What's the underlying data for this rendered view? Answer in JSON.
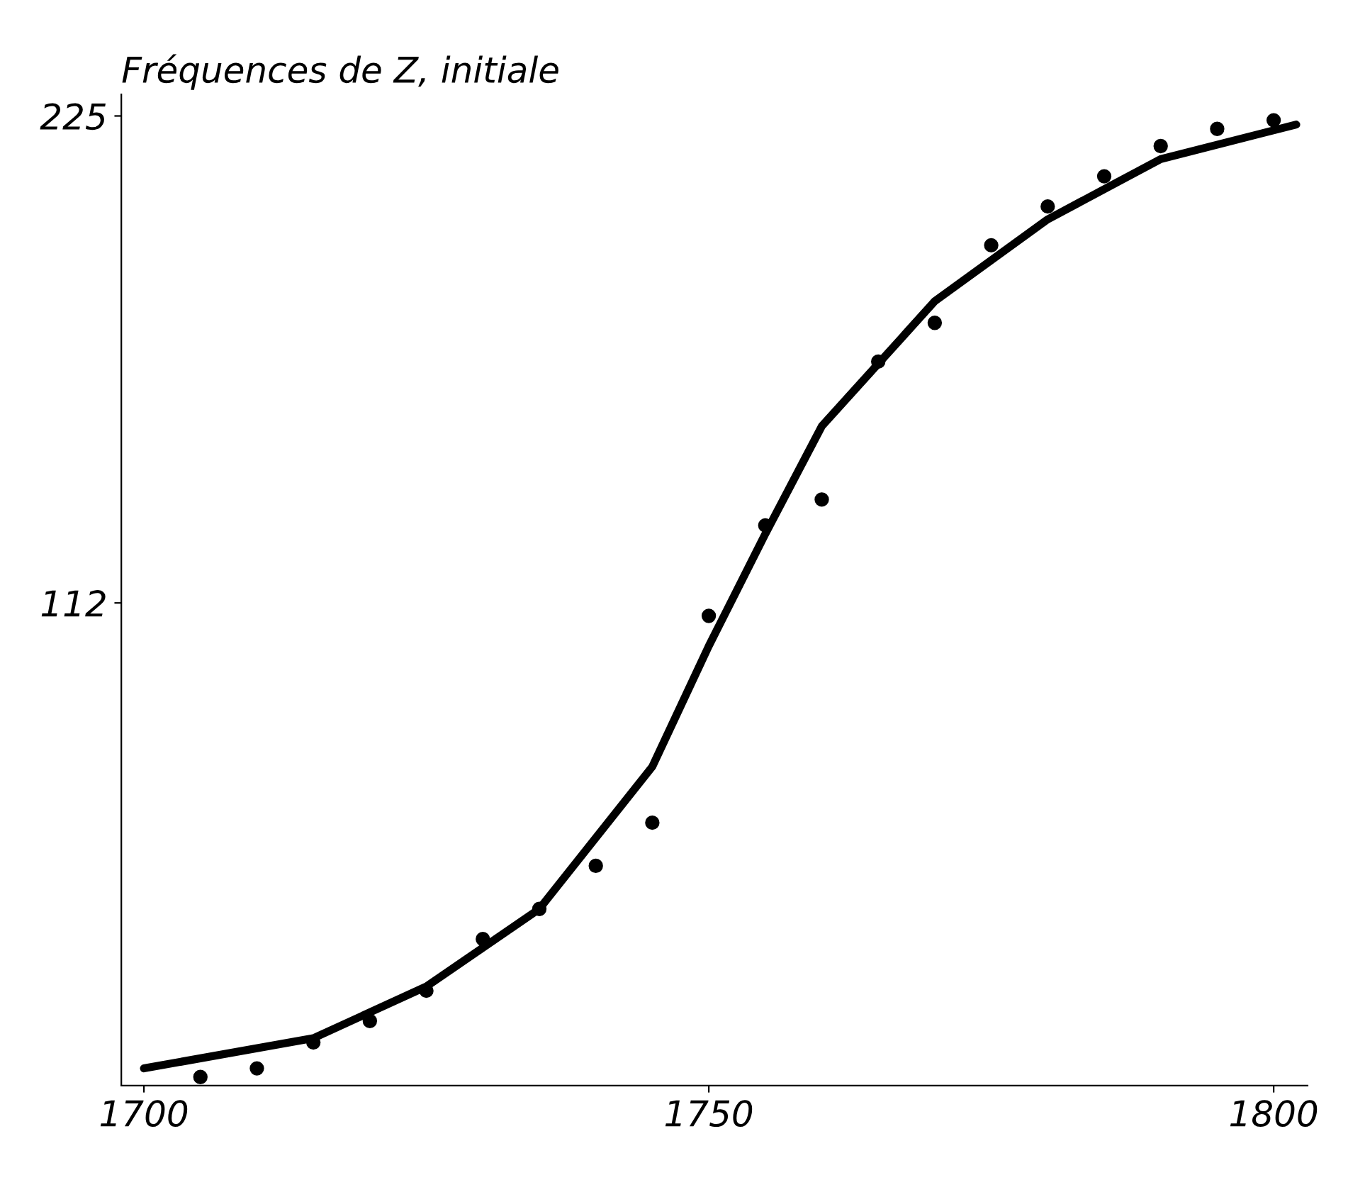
{
  "chart_data": {
    "type": "scatter",
    "title": "Fréquences de Z, initiale",
    "xlim": [
      1698,
      1803
    ],
    "xticks": [
      1700,
      1750,
      1800
    ],
    "ylim": [
      0,
      230
    ],
    "yticks": [
      112,
      225
    ],
    "grid": false,
    "legend": false,
    "series": [
      {
        "marker": "circle",
        "color": "#000000",
        "x": [
          1705,
          1710,
          1715,
          1720,
          1725,
          1730,
          1735,
          1740,
          1745,
          1750,
          1755,
          1760,
          1765,
          1770,
          1775,
          1780,
          1785,
          1790,
          1795,
          1800
        ],
        "values": [
          2,
          4,
          10,
          15,
          22,
          34,
          41,
          51,
          61,
          109,
          130,
          136,
          168,
          177,
          195,
          204,
          211,
          218,
          222,
          224
        ]
      },
      {
        "type": "line",
        "marker": "none",
        "color": "#000000",
        "line_style": "solid",
        "x": [
          1700,
          1715,
          1725,
          1735,
          1745,
          1750,
          1755,
          1760,
          1770,
          1780,
          1790,
          1802
        ],
        "values": [
          4,
          11,
          23,
          41,
          74,
          102,
          128,
          153,
          182,
          201,
          215,
          223
        ]
      }
    ]
  }
}
